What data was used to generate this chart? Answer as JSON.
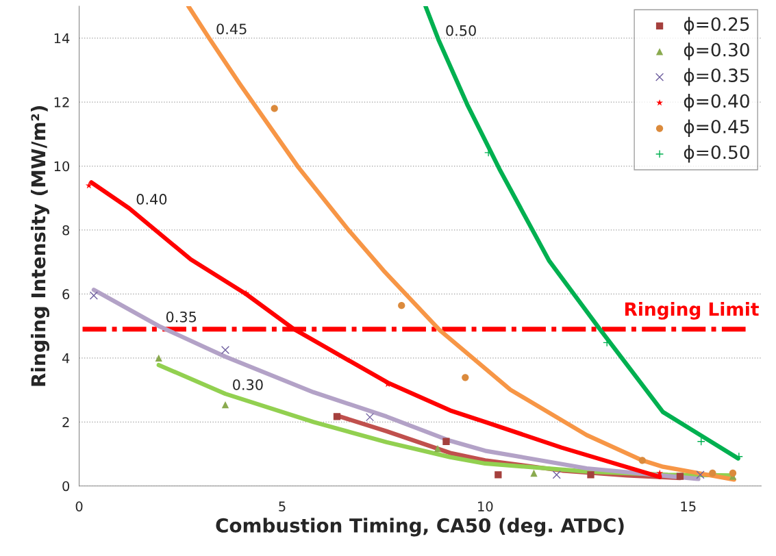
{
  "chart_data": {
    "type": "scatter",
    "xlabel": "Combustion Timing, CA50 (deg. ATDC)",
    "ylabel": "Ringing Intensity (MW/m²)",
    "xlim": [
      0,
      16.8
    ],
    "ylim": [
      0,
      15
    ],
    "xticks": [
      0,
      5,
      10,
      15
    ],
    "yticks": [
      0,
      2,
      4,
      6,
      8,
      10,
      12,
      14
    ],
    "grid": "y",
    "legend": "top right",
    "series": [
      {
        "name": "ϕ=0.25",
        "marker": "square",
        "color": "#a5403d",
        "x": [
          6.35,
          9.04,
          10.32,
          12.6,
          14.8
        ],
        "values": [
          2.17,
          1.39,
          0.35,
          0.35,
          0.3
        ]
      },
      {
        "name": "ϕ=0.30",
        "marker": "triangle",
        "color": "#8aaa4f",
        "x": [
          1.96,
          3.6,
          8.83,
          11.2,
          16.1
        ],
        "values": [
          4.0,
          2.54,
          1.17,
          0.4,
          0.3
        ]
      },
      {
        "name": "ϕ=0.35",
        "marker": "cross",
        "color": "#7060a0",
        "x": [
          0.36,
          3.6,
          7.16,
          11.76,
          15.3
        ],
        "values": [
          5.95,
          4.25,
          2.15,
          0.35,
          0.35
        ]
      },
      {
        "name": "ϕ=0.40",
        "marker": "star",
        "color": "#ff0000",
        "x": [
          0.24,
          4.11,
          7.6,
          14.3
        ],
        "values": [
          9.39,
          6.02,
          3.18,
          0.4
        ]
      },
      {
        "name": "ϕ=0.45",
        "marker": "circle",
        "color": "#db8a3c",
        "x": [
          4.81,
          7.94,
          9.51,
          13.87,
          15.6,
          16.1
        ],
        "values": [
          11.8,
          5.64,
          3.39,
          0.8,
          0.4,
          0.4
        ]
      },
      {
        "name": "ϕ=0.50",
        "marker": "plus",
        "color": "#00b050",
        "x": [
          10.08,
          13.0,
          15.32,
          16.25
        ],
        "values": [
          10.42,
          4.48,
          1.39,
          0.92
        ]
      },
      {
        "type": "line",
        "color": "#c0504d",
        "x": [
          6.35,
          7.57,
          9.14,
          10.0,
          11.9,
          13.5,
          14.8
        ],
        "values": [
          2.2,
          1.71,
          1.03,
          0.8,
          0.48,
          0.33,
          0.25
        ]
      },
      {
        "type": "line",
        "name": "0.30",
        "color": "#92d050",
        "x": [
          1.96,
          3.6,
          5.77,
          7.57,
          9.14,
          10.0,
          12.5,
          14.5,
          16.1
        ],
        "values": [
          3.78,
          2.88,
          2.0,
          1.37,
          0.9,
          0.7,
          0.45,
          0.35,
          0.33
        ]
      },
      {
        "type": "line",
        "name": "0.35",
        "color": "#b3a2c7",
        "x": [
          0.36,
          1.96,
          3.6,
          5.77,
          7.57,
          9.14,
          10.0,
          12.5,
          15.25
        ],
        "values": [
          6.13,
          5.0,
          4.04,
          2.93,
          2.17,
          1.41,
          1.1,
          0.55,
          0.22
        ]
      },
      {
        "type": "line",
        "name": "0.40",
        "color": "#ff0000",
        "x": [
          0.3,
          1.23,
          2.75,
          4.11,
          5.28,
          7.6,
          9.14,
          10.0,
          11.88,
          14.3
        ],
        "values": [
          9.49,
          8.68,
          7.08,
          6.0,
          4.91,
          3.23,
          2.36,
          2.0,
          1.2,
          0.28
        ]
      },
      {
        "type": "line",
        "name": "0.45",
        "color": "#f79646",
        "x": [
          2.69,
          3.2,
          3.95,
          5.4,
          6.64,
          7.5,
          8.88,
          10.62,
          12.5,
          13.87,
          14.38,
          16.13
        ],
        "values": [
          15.0,
          14.0,
          12.58,
          9.96,
          7.99,
          6.73,
          4.87,
          3.01,
          1.59,
          0.8,
          0.6,
          0.2
        ]
      },
      {
        "type": "line",
        "name": "0.50",
        "color": "#00b050",
        "x": [
          8.53,
          8.85,
          9.56,
          10.35,
          11.57,
          12.82,
          14.38,
          16.23
        ],
        "values": [
          15.0,
          13.95,
          11.92,
          9.91,
          7.05,
          4.91,
          2.31,
          0.86
        ]
      }
    ],
    "ref_lines": [
      {
        "axis": "y",
        "value": 4.9,
        "label": "Ringing Limit",
        "color": "#ff0000",
        "line_style": "dashdot"
      }
    ]
  }
}
